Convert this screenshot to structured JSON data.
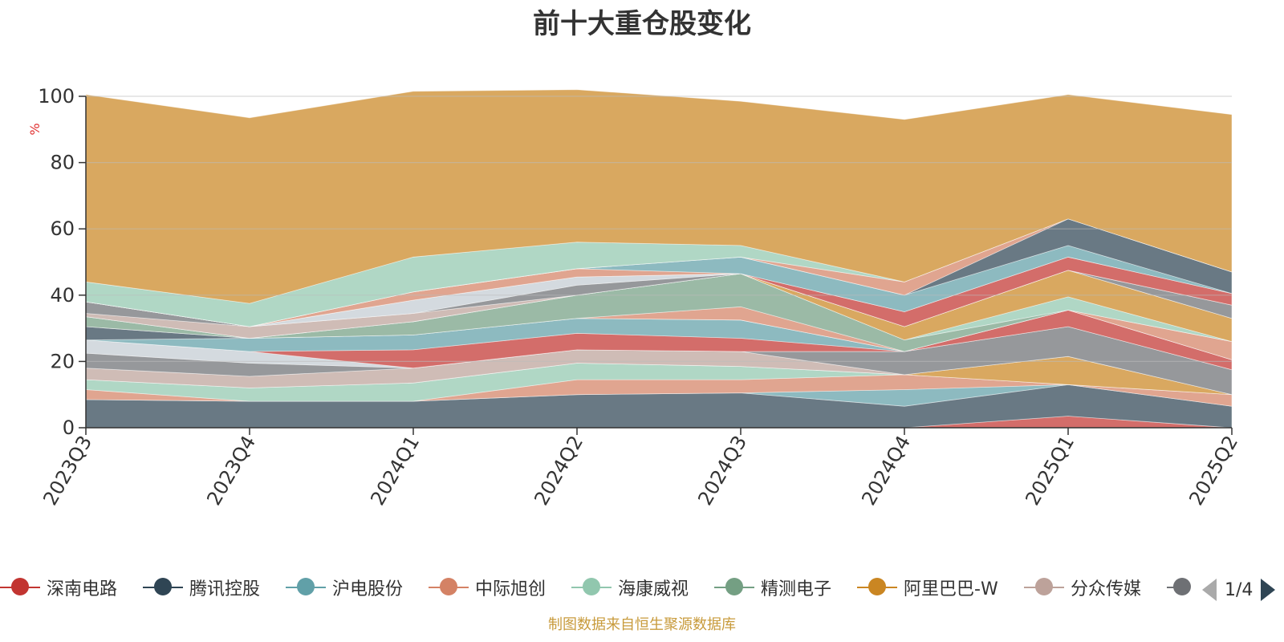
{
  "title": "前十大重仓股变化",
  "source_note": "制图数据来自恒生聚源数据库",
  "pager": {
    "text": "1/4"
  },
  "chart_data": {
    "type": "area",
    "stacked": true,
    "title": "前十大重仓股变化",
    "ylabel": "%",
    "ylim": [
      0,
      100
    ],
    "yticks": [
      0,
      20,
      40,
      60,
      80,
      100
    ],
    "categories": [
      "2023Q3",
      "2023Q4",
      "2024Q1",
      "2024Q2",
      "2024Q3",
      "2024Q4",
      "2025Q1",
      "2025Q2"
    ],
    "grid": true,
    "legend_position": "bottom",
    "legend_visible": [
      {
        "name": "深南电路",
        "color": "#c23531"
      },
      {
        "name": "腾讯控股",
        "color": "#2f4554"
      },
      {
        "name": "沪电股份",
        "color": "#61a0a8"
      },
      {
        "name": "中际旭创",
        "color": "#d48265"
      },
      {
        "name": "海康威视",
        "color": "#91c7ae"
      },
      {
        "name": "精测电子",
        "color": "#749f83"
      },
      {
        "name": "阿里巴巴-W",
        "color": "#ca8622"
      },
      {
        "name": "分众传媒",
        "color": "#bda29a"
      },
      {
        "name": "",
        "color": "#6e7074"
      }
    ],
    "series": [
      {
        "color": "#c23531",
        "values": [
          0,
          0,
          0,
          0,
          0,
          0,
          3.5,
          0
        ]
      },
      {
        "color": "#2f4554",
        "values": [
          8.5,
          8,
          8,
          10,
          10.5,
          6.5,
          9.5,
          6.5
        ]
      },
      {
        "color": "#61a0a8",
        "values": [
          0,
          0,
          0,
          0,
          0,
          5,
          0,
          0
        ]
      },
      {
        "color": "#d48265",
        "values": [
          3,
          0,
          0,
          4.5,
          4,
          4.5,
          0,
          3.5
        ]
      },
      {
        "color": "#91c7ae",
        "values": [
          3,
          4,
          5.5,
          5,
          4,
          0,
          0,
          0
        ]
      },
      {
        "color": "#ca8622",
        "values": [
          0,
          0,
          0,
          0,
          0,
          0,
          8.5,
          0
        ]
      },
      {
        "color": "#bda29a",
        "values": [
          3.5,
          3.5,
          4.5,
          4,
          4.5,
          0,
          0,
          0
        ]
      },
      {
        "color": "#6e7074",
        "values": [
          4.5,
          4,
          0,
          0,
          0,
          7,
          9,
          7.5
        ]
      },
      {
        "color": "#c4ccd3",
        "values": [
          4,
          3.5,
          0,
          0,
          0,
          0,
          0,
          0
        ]
      },
      {
        "color": "#c23531",
        "values": [
          0,
          0,
          5.5,
          5,
          4,
          0,
          5,
          3
        ]
      },
      {
        "color": "#61a0a8",
        "values": [
          0,
          4,
          4.5,
          4.5,
          5.5,
          0,
          0,
          0
        ]
      },
      {
        "color": "#2f4554",
        "values": [
          4,
          0,
          0,
          0,
          0,
          0,
          0,
          0
        ]
      },
      {
        "color": "#d48265",
        "values": [
          0,
          0,
          0,
          0,
          4,
          0,
          0,
          5.5
        ]
      },
      {
        "color": "#749f83",
        "values": [
          3,
          0,
          4,
          7,
          10,
          3.5,
          0,
          0
        ]
      },
      {
        "color": "#91c7ae",
        "values": [
          0,
          0,
          0,
          0,
          0,
          0,
          4,
          0
        ]
      },
      {
        "color": "#ca8622",
        "values": [
          0,
          0,
          0,
          0,
          0,
          4,
          8,
          7
        ]
      },
      {
        "color": "#bda29a",
        "values": [
          1,
          3.5,
          2.5,
          0,
          0,
          0,
          0,
          0
        ]
      },
      {
        "color": "#6e7074",
        "values": [
          3.5,
          0,
          0,
          3,
          0,
          0,
          0,
          4
        ]
      },
      {
        "color": "#c4ccd3",
        "values": [
          0,
          0,
          4,
          2.5,
          0,
          0,
          0,
          0
        ]
      },
      {
        "color": "#c23531",
        "values": [
          0,
          0,
          0,
          0,
          0,
          4.5,
          4,
          3.5
        ]
      },
      {
        "color": "#d48265",
        "values": [
          0,
          0,
          2.5,
          2.5,
          0,
          0,
          0,
          0
        ]
      },
      {
        "color": "#61a0a8",
        "values": [
          0,
          0,
          0,
          0,
          5,
          5,
          3.5,
          0
        ]
      },
      {
        "color": "#2f4554",
        "values": [
          0,
          0,
          0,
          0,
          0,
          0,
          8,
          6.5
        ]
      },
      {
        "color": "#d48265",
        "values": [
          0,
          0,
          0,
          0,
          0,
          4,
          0,
          0
        ]
      },
      {
        "color": "#91c7ae",
        "values": [
          6,
          7,
          10.5,
          8,
          3.5,
          0,
          0,
          0
        ]
      },
      {
        "color": "#ca8622",
        "values": [
          56.5,
          56,
          50,
          46,
          43.5,
          49,
          37.5,
          47.5
        ]
      }
    ]
  }
}
